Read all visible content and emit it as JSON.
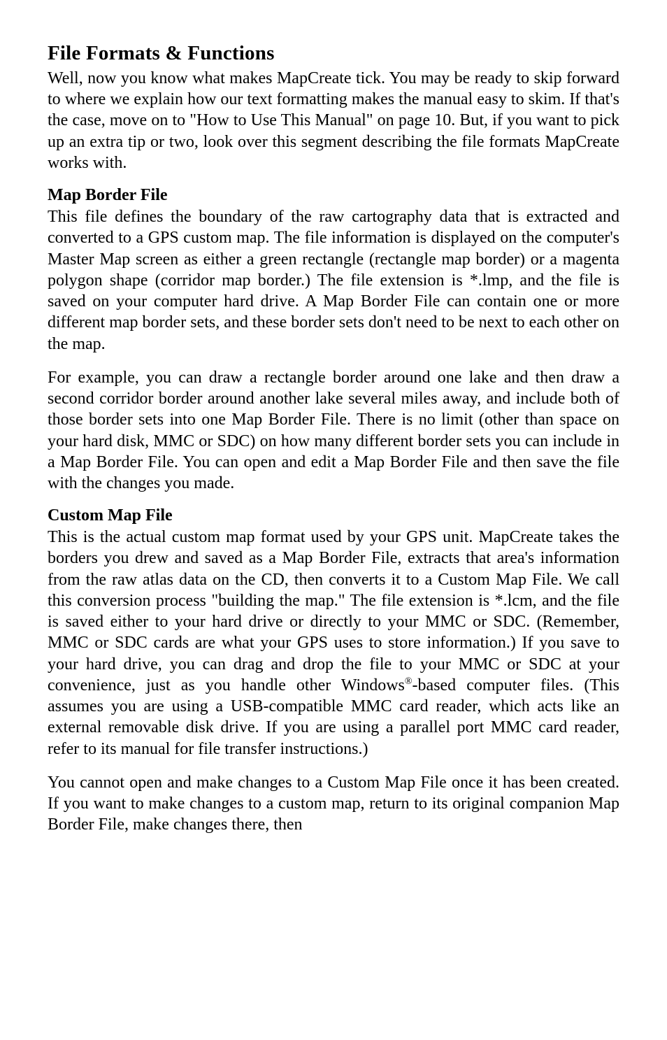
{
  "title": "File Formats & Functions",
  "intro": "Well, now you know what makes MapCreate tick. You may be ready to skip forward to where we explain how our text formatting makes the manual easy to skim. If that's the case, move on to \"How to Use This Manual\" on page 10. But, if you want to pick up an extra tip or two, look over this segment describing the file formats MapCreate works with.",
  "section1": {
    "heading": "Map Border File",
    "p1": "This file defines the boundary of the raw cartography data that is extracted and converted to a GPS custom map. The file information is displayed on the computer's Master Map screen as either a green rectangle (rectangle map border) or a magenta polygon shape (corridor map border.) The file extension is *.lmp, and the file is saved on your computer hard drive. A Map Border File can contain one or more different map border sets, and these border sets don't need to be next to each other on the map.",
    "p2": "For example, you can draw a rectangle border around one lake and then draw a second corridor border around another lake several miles away, and include both of those border sets into one Map Border File. There is no limit (other than space on your hard disk, MMC or SDC) on how many different border sets you can include in a Map Border File. You can open and edit a Map Border File and then save the file with the changes you made."
  },
  "section2": {
    "heading": "Custom Map File",
    "p1_pre": "This is the actual custom map format used by your GPS unit. MapCreate takes the borders you drew and saved as a Map Border File, extracts that area's information from the raw atlas data on the CD, then converts it to a Custom Map File. We call this conversion process \"building the map.\" The file extension is *.lcm, and the file is saved either to your hard drive or directly to your MMC or SDC. (Remember, MMC or SDC cards are what your GPS uses to store information.) If you save to your hard drive, you can drag and drop the file to your MMC or SDC at your convenience, just as you handle other Windows",
    "p1_sup": "®",
    "p1_post": "-based computer files. (This assumes you are using a USB-compatible MMC card reader, which acts like an external removable disk drive. If you are using a parallel port MMC card reader, refer to its manual for file transfer instructions.)",
    "p2": "You cannot open and make changes to a Custom Map File once it has been created. If you want to make changes to a custom map, return to its original companion Map Border File, make changes there, then"
  }
}
